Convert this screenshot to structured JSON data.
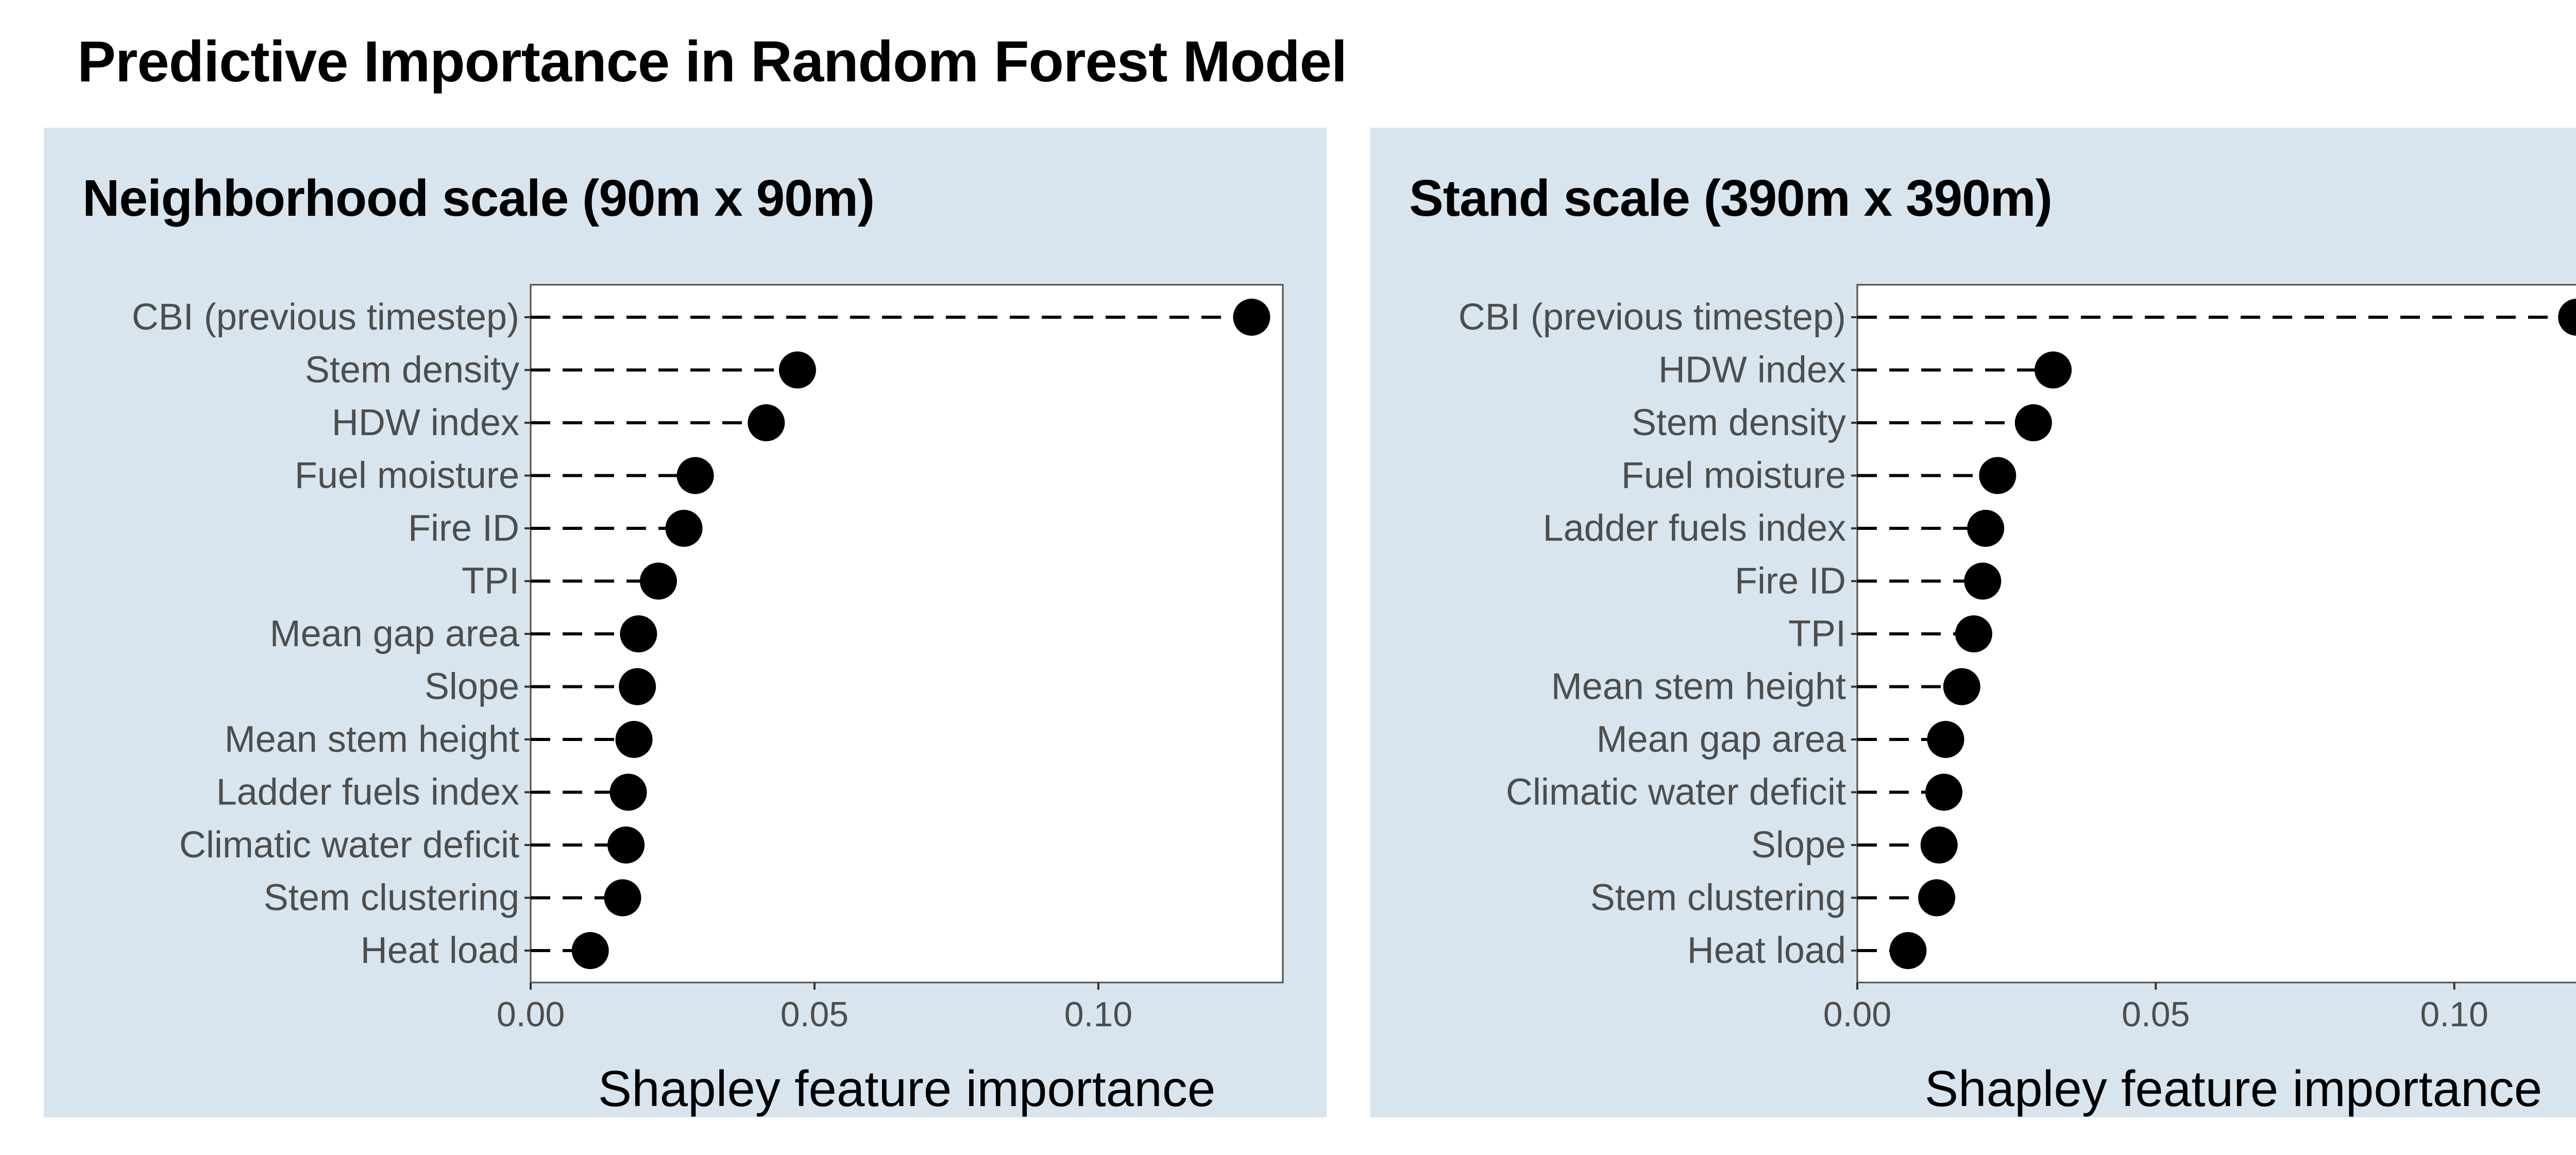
{
  "title": "Predictive Importance in Random Forest Model",
  "chart_data": [
    {
      "type": "scatter",
      "subtype": "dot-plot",
      "title": "Neighborhood scale (90m x 90m)",
      "xlabel": "Shapley feature importance",
      "ylabel": "",
      "xlim": [
        0,
        0.1325
      ],
      "xticks": [
        "0.00",
        "0.05",
        "0.10"
      ],
      "xtick_values": [
        0,
        0.05,
        0.1
      ],
      "grid": false,
      "categories": [
        "CBI (previous timestep)",
        "Stem density",
        "HDW index",
        "Fuel moisture",
        "Fire ID",
        "TPI",
        "Mean gap area",
        "Slope",
        "Mean stem height",
        "Ladder fuels index",
        "Climatic water deficit",
        "Stem clustering",
        "Heat load"
      ],
      "values": [
        0.127,
        0.047,
        0.0415,
        0.029,
        0.027,
        0.0225,
        0.019,
        0.0188,
        0.0182,
        0.0172,
        0.0168,
        0.0162,
        0.0105
      ]
    },
    {
      "type": "scatter",
      "subtype": "dot-plot",
      "title": "Stand scale (390m x 390m)",
      "xlabel": "Shapley feature importance",
      "ylabel": "",
      "xlim": [
        0,
        0.126
      ],
      "xticks": [
        "0.00",
        "0.05",
        "0.10"
      ],
      "xtick_values": [
        0,
        0.05,
        0.1
      ],
      "grid": false,
      "categories": [
        "CBI (previous timestep)",
        "HDW index",
        "Stem density",
        "Fuel moisture",
        "Ladder fuels index",
        "Fire ID",
        "TPI",
        "Mean stem height",
        "Mean gap area",
        "Climatic water deficit",
        "Slope",
        "Stem clustering",
        "Heat load"
      ],
      "values": [
        0.1205,
        0.0328,
        0.0295,
        0.0235,
        0.0215,
        0.021,
        0.0195,
        0.0175,
        0.0148,
        0.0145,
        0.0137,
        0.0133,
        0.0085
      ]
    }
  ]
}
